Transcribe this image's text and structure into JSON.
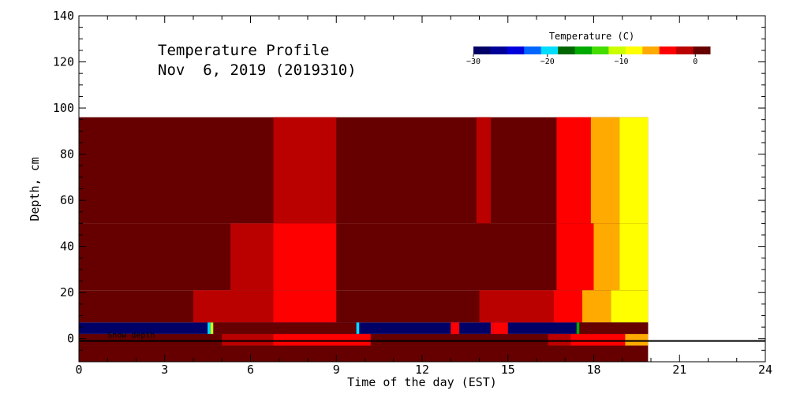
{
  "chart_data": {
    "type": "heatmap",
    "title": "Temperature Profile",
    "subtitle": "Nov  6, 2019 (2019310)",
    "xlabel": "Time of the day (EST)",
    "ylabel": "Depth, cm",
    "xlim": [
      0,
      24
    ],
    "ylim": [
      -10,
      140
    ],
    "x_ticks": [
      0,
      3,
      6,
      9,
      12,
      15,
      18,
      21,
      24
    ],
    "y_ticks": [
      0,
      20,
      40,
      60,
      80,
      100,
      120,
      140
    ],
    "data_extent": {
      "time": [
        0,
        19.9
      ],
      "depth": [
        -10,
        96
      ]
    },
    "colorbar": {
      "title": "Temperature (C)",
      "range": [
        -30,
        2
      ],
      "ticks": [
        -30,
        -20,
        -10,
        0
      ],
      "colors": [
        "#000066",
        "#000099",
        "#0000dd",
        "#0066ff",
        "#00ddff",
        "#006600",
        "#00aa00",
        "#44dd00",
        "#ccff00",
        "#ffff00",
        "#ffaa00",
        "#ff0000",
        "#bb0000",
        "#660000"
      ]
    },
    "depth_bands": [
      {
        "top": 96,
        "bottom": 50,
        "base": "#660000",
        "hot": [
          {
            "from": 6.8,
            "to": 9.0,
            "color": "#bb0000"
          },
          {
            "from": 13.9,
            "to": 14.4,
            "color": "#bb0000"
          },
          {
            "from": 16.7,
            "to": 17.9,
            "color": "#ff0000"
          },
          {
            "from": 17.9,
            "to": 18.9,
            "color": "#ffaa00"
          },
          {
            "from": 18.9,
            "to": 19.9,
            "color": "#ffff00"
          }
        ]
      },
      {
        "top": 50,
        "bottom": 21,
        "base": "#660000",
        "hot": [
          {
            "from": 5.3,
            "to": 6.8,
            "color": "#bb0000"
          },
          {
            "from": 6.8,
            "to": 9.0,
            "color": "#ff0000"
          },
          {
            "from": 16.7,
            "to": 18.0,
            "color": "#ff0000"
          },
          {
            "from": 18.0,
            "to": 18.9,
            "color": "#ffaa00"
          },
          {
            "from": 18.9,
            "to": 19.9,
            "color": "#ffff00"
          }
        ]
      },
      {
        "top": 21,
        "bottom": 7,
        "base": "#660000",
        "hot": [
          {
            "from": 4.0,
            "to": 6.8,
            "color": "#bb0000"
          },
          {
            "from": 6.8,
            "to": 9.0,
            "color": "#ff0000"
          },
          {
            "from": 14.0,
            "to": 16.6,
            "color": "#bb0000"
          },
          {
            "from": 16.6,
            "to": 17.6,
            "color": "#ff0000"
          },
          {
            "from": 17.6,
            "to": 18.6,
            "color": "#ffaa00"
          },
          {
            "from": 18.6,
            "to": 19.9,
            "color": "#ffff00"
          }
        ]
      },
      {
        "top": 7,
        "bottom": 2,
        "base": "#000066",
        "hot": [
          {
            "from": 4.5,
            "to": 4.6,
            "color": "#00ddff"
          },
          {
            "from": 4.6,
            "to": 4.7,
            "color": "#ccff00"
          },
          {
            "from": 4.7,
            "to": 9.7,
            "color": "#660000"
          },
          {
            "from": 9.7,
            "to": 9.8,
            "color": "#00ddff"
          },
          {
            "from": 13.0,
            "to": 13.3,
            "color": "#ff0000"
          },
          {
            "from": 14.4,
            "to": 14.5,
            "color": "#ff0000"
          },
          {
            "from": 14.5,
            "to": 15.0,
            "color": "#ff0000"
          },
          {
            "from": 17.4,
            "to": 17.5,
            "color": "#00aa00"
          },
          {
            "from": 17.5,
            "to": 19.9,
            "color": "#660000"
          }
        ]
      },
      {
        "top": 2,
        "bottom": -3,
        "base": "#660000",
        "hot": [
          {
            "from": 5.0,
            "to": 6.8,
            "color": "#bb0000"
          },
          {
            "from": 6.8,
            "to": 10.2,
            "color": "#ff0000"
          },
          {
            "from": 16.4,
            "to": 17.2,
            "color": "#bb0000"
          },
          {
            "from": 17.2,
            "to": 19.1,
            "color": "#ff0000"
          },
          {
            "from": 19.1,
            "to": 19.9,
            "color": "#ffaa00"
          }
        ]
      },
      {
        "top": -3,
        "bottom": -10,
        "base": "#660000",
        "hot": []
      }
    ],
    "snow_depth": {
      "label": "Snow depth",
      "value": -1
    }
  }
}
